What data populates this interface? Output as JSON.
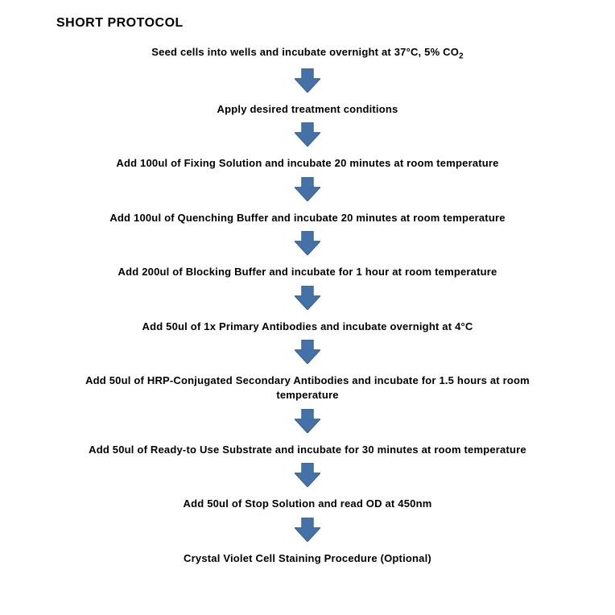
{
  "title": "SHORT PROTOCOL",
  "arrow": {
    "fill": "#4472a8",
    "stroke": "#3a5f8a",
    "width": 32,
    "height": 30
  },
  "steps": [
    {
      "text": "Seed cells into wells and incubate overnight at 37°C, 5% CO",
      "sub": "2"
    },
    {
      "text": "Apply desired treatment conditions"
    },
    {
      "text": "Add 100ul of Fixing Solution and incubate 20 minutes at room temperature"
    },
    {
      "text": "Add 100ul of Quenching Buffer and incubate 20 minutes at room temperature"
    },
    {
      "text": "Add 200ul of Blocking Buffer and incubate for 1 hour at room temperature"
    },
    {
      "text": "Add 50ul of 1x Primary Antibodies and incubate overnight at 4°C"
    },
    {
      "text": "Add 50ul of HRP-Conjugated Secondary Antibodies and incubate for 1.5 hours at room temperature"
    },
    {
      "text": "Add 50ul of Ready-to Use Substrate and incubate for 30 minutes at room temperature"
    },
    {
      "text": "Add 50ul of Stop Solution and read OD at 450nm"
    },
    {
      "text": "Crystal Violet Cell Staining Procedure (Optional)"
    }
  ]
}
